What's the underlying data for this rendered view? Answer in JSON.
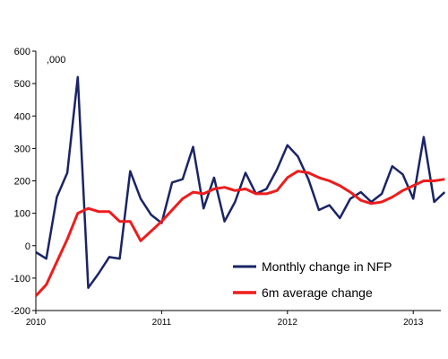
{
  "chart_data": {
    "type": "line",
    "title": "",
    "xlabel": "",
    "ylabel": "",
    "unit_label": ",000",
    "ylim": [
      -200,
      600
    ],
    "yticks": [
      -200,
      -100,
      0,
      100,
      200,
      300,
      400,
      500,
      600
    ],
    "x_tick_labels": [
      "2010",
      "2011",
      "2012",
      "2013"
    ],
    "grid": false,
    "legend_position": "bottom-right",
    "series": [
      {
        "name": "Monthly change in NFP",
        "color": "#1a2466",
        "values": [
          -20,
          -40,
          150,
          225,
          520,
          -130,
          -85,
          -35,
          -40,
          230,
          145,
          95,
          70,
          195,
          205,
          305,
          115,
          210,
          75,
          135,
          225,
          160,
          175,
          235,
          310,
          275,
          205,
          110,
          125,
          85,
          145,
          165,
          135,
          160,
          245,
          220,
          145,
          335,
          135,
          165
        ]
      },
      {
        "name": "6m average change",
        "color": "#ee1c1c",
        "values": [
          -155,
          -120,
          -50,
          20,
          100,
          115,
          105,
          105,
          75,
          75,
          15,
          45,
          75,
          110,
          145,
          165,
          160,
          175,
          180,
          170,
          175,
          160,
          160,
          170,
          210,
          230,
          225,
          210,
          200,
          185,
          165,
          140,
          130,
          135,
          150,
          170,
          185,
          200,
          200,
          205
        ]
      }
    ]
  }
}
